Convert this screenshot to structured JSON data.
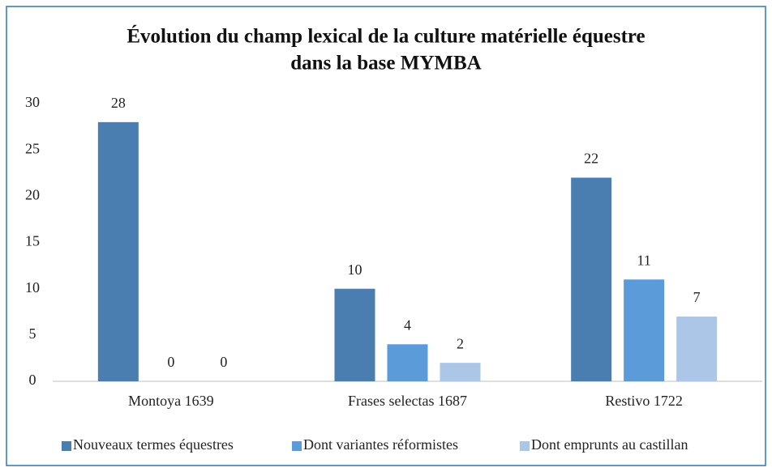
{
  "chart_data": {
    "type": "bar",
    "title": [
      "Évolution du champ lexical de la culture matérielle équestre",
      "dans la base MYMBA"
    ],
    "categories": [
      "Montoya 1639",
      "Frases selectas 1687",
      "Restivo 1722"
    ],
    "series": [
      {
        "name": "Nouveaux termes équestres",
        "color": "#4a7eb1",
        "values": [
          28,
          10,
          22
        ]
      },
      {
        "name": "Dont variantes réformistes",
        "color": "#5b9bd9",
        "values": [
          0,
          4,
          11
        ]
      },
      {
        "name": "Dont emprunts au castillan",
        "color": "#abc6e7",
        "values": [
          0,
          2,
          7
        ]
      }
    ],
    "ylim": [
      0,
      30
    ],
    "yticks": [
      0,
      5,
      10,
      15,
      20,
      25,
      30
    ],
    "grid": false,
    "legend": "bottom",
    "data_labels": true
  }
}
